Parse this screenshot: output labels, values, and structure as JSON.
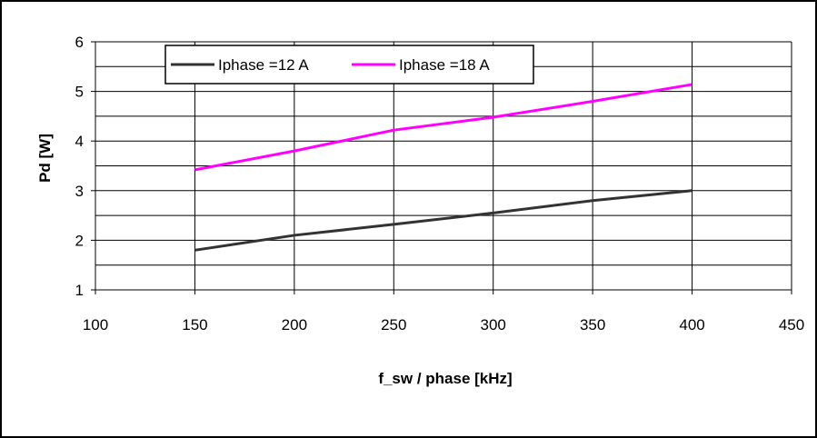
{
  "chart_data": {
    "type": "line",
    "title": "",
    "xlabel": "f_sw / phase [kHz]",
    "ylabel": "Pd [W]",
    "xlim": [
      100,
      450
    ],
    "ylim": [
      1,
      6
    ],
    "x_ticks": [
      100,
      150,
      200,
      250,
      300,
      350,
      400,
      450
    ],
    "y_ticks": [
      1,
      2,
      3,
      4,
      5,
      6
    ],
    "grid": true,
    "legend_position": "top",
    "series": [
      {
        "name": "Iphase =12 A",
        "color": "#333333",
        "x": [
          150,
          200,
          250,
          300,
          350,
          400
        ],
        "y": [
          1.8,
          2.1,
          2.32,
          2.55,
          2.8,
          3.0
        ]
      },
      {
        "name": "Iphase =18 A",
        "color": "#ff00ff",
        "x": [
          150,
          200,
          250,
          300,
          350,
          400
        ],
        "y": [
          3.42,
          3.8,
          4.22,
          4.48,
          4.8,
          5.14
        ]
      }
    ]
  }
}
